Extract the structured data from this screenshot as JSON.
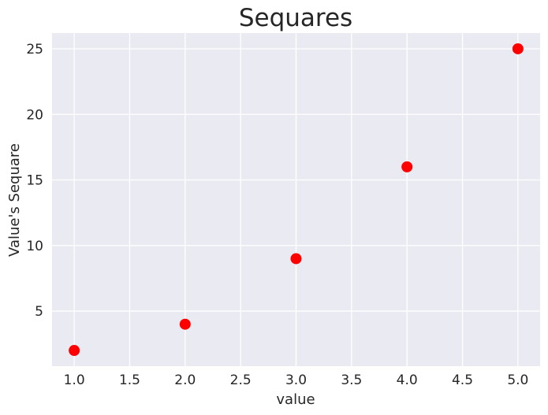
{
  "chart_data": {
    "type": "scatter",
    "title": "Sequares",
    "xlabel": "value",
    "ylabel": "Value's Sequare",
    "x": [
      1,
      2,
      3,
      4,
      5
    ],
    "y": [
      2,
      4,
      9,
      16,
      25
    ],
    "xlim": [
      0.8,
      5.2
    ],
    "ylim": [
      0.8,
      26.2
    ],
    "xticks": [
      "1.0",
      "1.5",
      "2.0",
      "2.5",
      "3.0",
      "3.5",
      "4.0",
      "4.5",
      "5.0"
    ],
    "yticks": [
      "5",
      "10",
      "15",
      "20",
      "25"
    ],
    "grid": true,
    "legend": "none",
    "colors": {
      "background": "#EAEAF2",
      "grid": "#FFFFFF",
      "marker": "#FF0000",
      "text": "#262626"
    }
  }
}
